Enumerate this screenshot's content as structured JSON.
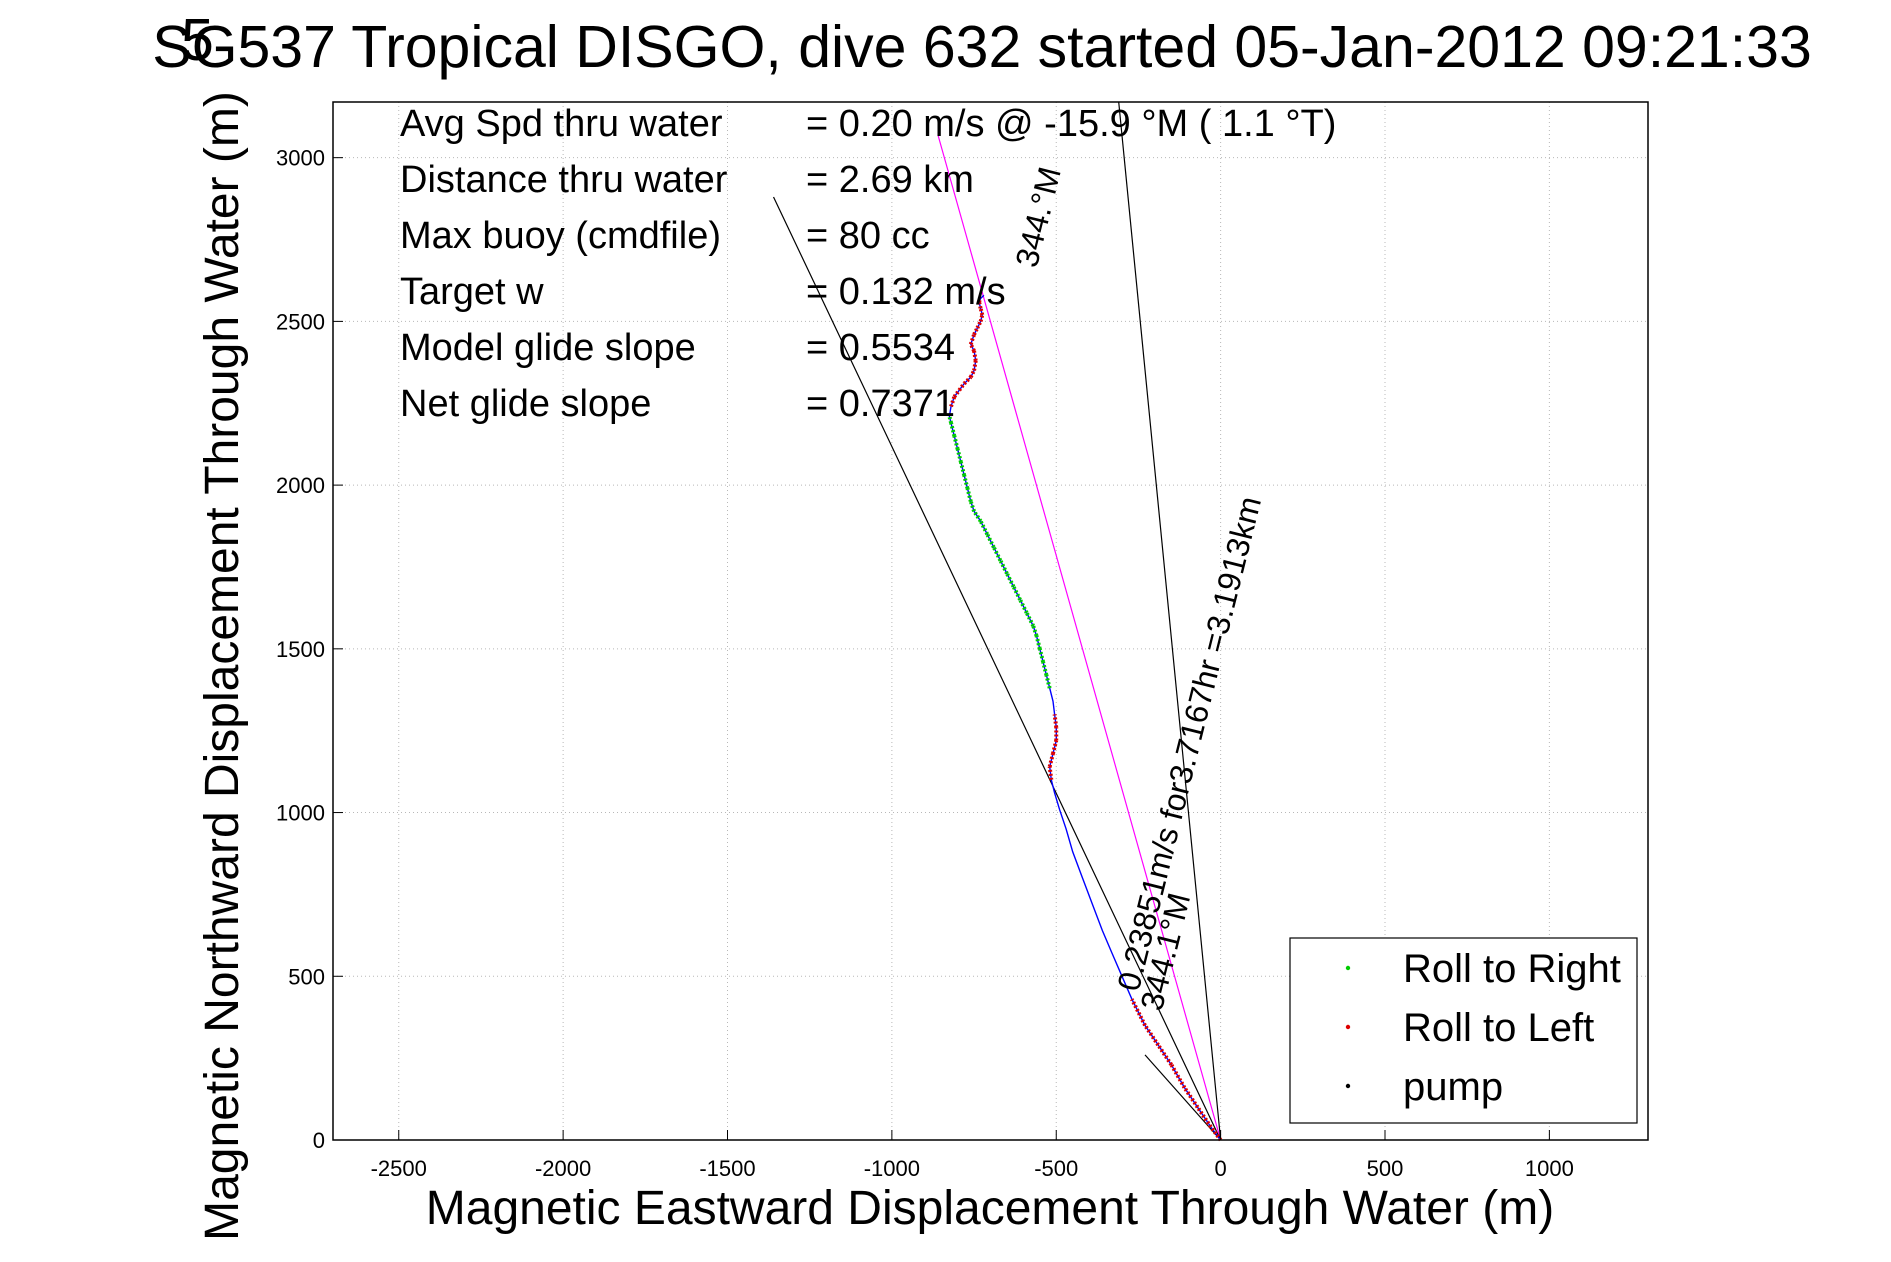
{
  "chart_data": {
    "type": "line",
    "title": "SG537 Tropical DISGO, dive 632 started 05-Jan-2012 09:21:33",
    "overlap_glyph": "5",
    "xlabel": "Magnetic Eastward Displacement Through Water (m)",
    "ylabel": "Magnetic Northward Displacement Through Water (m)",
    "xlim": [
      -2700,
      1300
    ],
    "ylim": [
      0,
      3170
    ],
    "x_ticks": [
      -2500,
      -2000,
      -1500,
      -1000,
      -500,
      0,
      500,
      1000
    ],
    "y_ticks": [
      0,
      500,
      1000,
      1500,
      2000,
      2500,
      3000
    ],
    "grid": "dotted",
    "info": [
      {
        "label": "Avg Spd thru water",
        "value": "=  0.20 m/s @ -15.9 °M (  1.1 °T)"
      },
      {
        "label": "Distance thru water",
        "value": "=  2.69 km"
      },
      {
        "label": "Max buoy (cmdfile)",
        "value": "= 80 cc"
      },
      {
        "label": "Target w",
        "value": "= 0.132 m/s"
      },
      {
        "label": "Model glide slope",
        "value": "= 0.5534"
      },
      {
        "label": "Net glide slope",
        "value": "= 0.7371"
      }
    ],
    "annotations": [
      {
        "text": "344.°M",
        "x": -560,
        "y": 2660
      },
      {
        "text": "0.23851m/s for3.7167hr =3.1913km",
        "x": -250,
        "y": 450
      },
      {
        "text": "344.1°M",
        "x": -180,
        "y": 390
      }
    ],
    "reference_lines": [
      {
        "name": "heading-line",
        "x": [
          0,
          -860
        ],
        "y": [
          0,
          3070
        ],
        "color": "#ff00ff"
      },
      {
        "name": "ref-line-1",
        "x": [
          0,
          -1360
        ],
        "y": [
          0,
          2880
        ]
      },
      {
        "name": "ref-line-2",
        "x": [
          0,
          -310
        ],
        "y": [
          0,
          3170
        ]
      },
      {
        "name": "ref-line-3",
        "x": [
          0,
          -230
        ],
        "y": [
          0,
          260
        ]
      }
    ],
    "series": [
      {
        "name": "track",
        "color": "#0000ff",
        "x": [
          0,
          -30,
          -70,
          -110,
          -150,
          -190,
          -230,
          -270,
          -300,
          -330,
          -360,
          -390,
          -420,
          -450,
          -470,
          -490,
          -505,
          -515,
          -520,
          -510,
          -500,
          -500,
          -505,
          -510,
          -520,
          -530,
          -540,
          -550,
          -560,
          -570,
          -590,
          -610,
          -630,
          -650,
          -670,
          -690,
          -710,
          -730,
          -750,
          -760,
          -770,
          -780,
          -790,
          -800,
          -810,
          -820,
          -825,
          -820,
          -810,
          -795,
          -780,
          -760,
          -750,
          -745,
          -750,
          -760,
          -750,
          -740,
          -730,
          -725,
          -730,
          -735,
          -730,
          -720
        ],
        "y": [
          0,
          40,
          100,
          160,
          230,
          290,
          350,
          430,
          500,
          570,
          640,
          720,
          800,
          880,
          950,
          1010,
          1060,
          1100,
          1140,
          1180,
          1220,
          1260,
          1300,
          1340,
          1380,
          1420,
          1460,
          1500,
          1540,
          1570,
          1610,
          1650,
          1690,
          1730,
          1770,
          1810,
          1850,
          1890,
          1920,
          1950,
          1990,
          2030,
          2070,
          2110,
          2150,
          2190,
          2210,
          2240,
          2270,
          2290,
          2310,
          2330,
          2350,
          2380,
          2410,
          2430,
          2460,
          2480,
          2500,
          2520,
          2540,
          2560,
          2570,
          2580
        ]
      },
      {
        "name": "Roll to Right",
        "color": "#00cc00",
        "marker": "dot"
      },
      {
        "name": "Roll to Left",
        "color": "#dd0000",
        "marker": "dot"
      },
      {
        "name": "pump",
        "color": "#000000",
        "marker": "dot"
      }
    ],
    "legend": {
      "position": "bottom-right",
      "entries": [
        {
          "label": "Roll to Right",
          "color": "#00cc00"
        },
        {
          "label": "Roll to Left",
          "color": "#dd0000"
        },
        {
          "label": "pump",
          "color": "#000000"
        }
      ]
    }
  }
}
